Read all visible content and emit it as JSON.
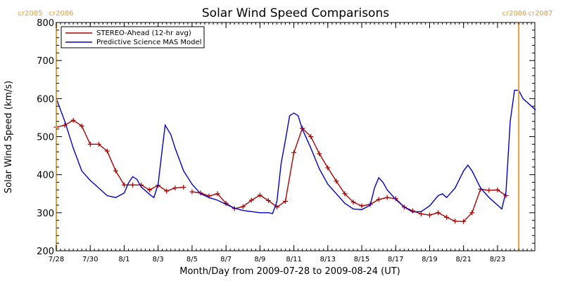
{
  "chart_data": {
    "type": "line",
    "title": "Solar Wind Speed Comparisons",
    "xlabel": "Month/Day from 2009-07-28 to 2009-08-24 (UT)",
    "ylabel": "Solar Wind Speed (km/s)",
    "xlim": [
      "2009-07-28",
      "2009-08-24"
    ],
    "ylim": [
      200,
      800
    ],
    "yticks": [
      200,
      300,
      400,
      500,
      600,
      700,
      800
    ],
    "xtick_dates": [
      "2009-07-28",
      "2009-07-30",
      "2009-08-01",
      "2009-08-03",
      "2009-08-05",
      "2009-08-07",
      "2009-08-09",
      "2009-08-11",
      "2009-08-13",
      "2009-08-15",
      "2009-08-17",
      "2009-08-19",
      "2009-08-21",
      "2009-08-23"
    ],
    "xtick_labels": [
      "7/28",
      "7/30",
      "8/1",
      "8/3",
      "8/5",
      "8/7",
      "8/9",
      "8/11",
      "8/13",
      "8/15",
      "8/17",
      "8/19",
      "8/21",
      "8/23"
    ],
    "legend_position": "top-left",
    "carrington_markers": [
      {
        "date": "2009-07-28",
        "left_label": "cr2085",
        "right_label": "cr2086",
        "color": "#e8a03c"
      },
      {
        "date": "2009-08-24 06:00",
        "left_label": "cr2086",
        "right_label": "cr2087",
        "color": "#e8a03c"
      }
    ],
    "series": [
      {
        "name": "STEREO-Ahead (12-hr avg)",
        "color": "#aa0000",
        "marker": "+",
        "segments": [
          [
            [
              "2009-07-28 00:00",
              525
            ],
            [
              "2009-07-28 12:00",
              530
            ],
            [
              "2009-07-29 00:00",
              543
            ],
            [
              "2009-07-29 12:00",
              528
            ],
            [
              "2009-07-30 00:00",
              480
            ],
            [
              "2009-07-30 12:00",
              480
            ],
            [
              "2009-07-31 00:00",
              462
            ],
            [
              "2009-07-31 12:00",
              410
            ],
            [
              "2009-08-01 00:00",
              373
            ],
            [
              "2009-08-01 12:00",
              373
            ],
            [
              "2009-08-02 00:00",
              373
            ],
            [
              "2009-08-02 12:00",
              360
            ],
            [
              "2009-08-03 00:00",
              372
            ],
            [
              "2009-08-03 12:00",
              357
            ],
            [
              "2009-08-04 00:00",
              365
            ],
            [
              "2009-08-04 12:00",
              367
            ]
          ],
          [
            [
              "2009-08-05 00:00",
              355
            ],
            [
              "2009-08-05 12:00",
              352
            ],
            [
              "2009-08-06 00:00",
              344
            ],
            [
              "2009-08-06 12:00",
              350
            ],
            [
              "2009-08-07 00:00",
              325
            ],
            [
              "2009-08-07 12:00",
              311
            ],
            [
              "2009-08-08 00:00",
              316
            ],
            [
              "2009-08-08 12:00",
              333
            ],
            [
              "2009-08-09 00:00",
              346
            ],
            [
              "2009-08-09 12:00",
              332
            ],
            [
              "2009-08-10 00:00",
              315
            ],
            [
              "2009-08-10 12:00",
              330
            ],
            [
              "2009-08-11 00:00",
              458
            ],
            [
              "2009-08-11 12:00",
              522
            ],
            [
              "2009-08-12 00:00",
              500
            ],
            [
              "2009-08-12 12:00",
              455
            ],
            [
              "2009-08-13 00:00",
              418
            ],
            [
              "2009-08-13 12:00",
              383
            ],
            [
              "2009-08-14 00:00",
              350
            ],
            [
              "2009-08-14 12:00",
              328
            ],
            [
              "2009-08-15 00:00",
              318
            ],
            [
              "2009-08-15 12:00",
              322
            ],
            [
              "2009-08-16 00:00",
              335
            ],
            [
              "2009-08-16 12:00",
              340
            ],
            [
              "2009-08-17 00:00",
              337
            ],
            [
              "2009-08-17 12:00",
              315
            ],
            [
              "2009-08-18 00:00",
              305
            ],
            [
              "2009-08-18 12:00",
              297
            ],
            [
              "2009-08-19 00:00",
              294
            ],
            [
              "2009-08-19 12:00",
              300
            ],
            [
              "2009-08-20 00:00",
              288
            ],
            [
              "2009-08-20 12:00",
              278
            ],
            [
              "2009-08-21 00:00",
              277
            ],
            [
              "2009-08-21 12:00",
              300
            ],
            [
              "2009-08-22 00:00",
              362
            ],
            [
              "2009-08-22 12:00",
              359
            ],
            [
              "2009-08-23 00:00",
              360
            ],
            [
              "2009-08-23 12:00",
              345
            ]
          ]
        ]
      },
      {
        "name": "Predictive Science MAS Model",
        "color": "#0000cc",
        "marker": "",
        "segments": [
          [
            [
              "2009-07-28 00:00",
              600
            ],
            [
              "2009-07-28 12:00",
              540
            ],
            [
              "2009-07-29 00:00",
              470
            ],
            [
              "2009-07-29 12:00",
              410
            ],
            [
              "2009-07-30 00:00",
              385
            ],
            [
              "2009-07-30 12:00",
              365
            ],
            [
              "2009-07-31 00:00",
              345
            ],
            [
              "2009-07-31 12:00",
              340
            ],
            [
              "2009-08-01 00:00",
              352
            ],
            [
              "2009-08-01 06:00",
              378
            ],
            [
              "2009-08-01 12:00",
              395
            ],
            [
              "2009-08-01 18:00",
              388
            ],
            [
              "2009-08-02 00:00",
              368
            ],
            [
              "2009-08-02 12:00",
              348
            ],
            [
              "2009-08-02 18:00",
              340
            ],
            [
              "2009-08-03 00:00",
              375
            ],
            [
              "2009-08-03 06:00",
              470
            ],
            [
              "2009-08-03 10:00",
              530
            ],
            [
              "2009-08-03 18:00",
              505
            ],
            [
              "2009-08-04 00:00",
              470
            ],
            [
              "2009-08-04 12:00",
              410
            ],
            [
              "2009-08-05 00:00",
              375
            ],
            [
              "2009-08-05 12:00",
              350
            ],
            [
              "2009-08-06 00:00",
              340
            ],
            [
              "2009-08-06 12:00",
              333
            ],
            [
              "2009-08-07 00:00",
              322
            ],
            [
              "2009-08-07 12:00",
              312
            ],
            [
              "2009-08-08 00:00",
              306
            ],
            [
              "2009-08-08 12:00",
              303
            ],
            [
              "2009-08-09 00:00",
              300
            ],
            [
              "2009-08-09 12:00",
              300
            ],
            [
              "2009-08-09 18:00",
              298
            ],
            [
              "2009-08-10 00:00",
              330
            ],
            [
              "2009-08-10 06:00",
              430
            ],
            [
              "2009-08-10 12:00",
              490
            ],
            [
              "2009-08-10 18:00",
              555
            ],
            [
              "2009-08-11 00:00",
              562
            ],
            [
              "2009-08-11 06:00",
              555
            ],
            [
              "2009-08-11 12:00",
              520
            ],
            [
              "2009-08-12 00:00",
              470
            ],
            [
              "2009-08-12 12:00",
              415
            ],
            [
              "2009-08-13 00:00",
              375
            ],
            [
              "2009-08-13 12:00",
              350
            ],
            [
              "2009-08-14 00:00",
              325
            ],
            [
              "2009-08-14 12:00",
              310
            ],
            [
              "2009-08-15 00:00",
              308
            ],
            [
              "2009-08-15 12:00",
              320
            ],
            [
              "2009-08-15 18:00",
              365
            ],
            [
              "2009-08-16 00:00",
              392
            ],
            [
              "2009-08-16 06:00",
              380
            ],
            [
              "2009-08-16 12:00",
              360
            ],
            [
              "2009-08-17 00:00",
              335
            ],
            [
              "2009-08-17 12:00",
              315
            ],
            [
              "2009-08-18 00:00",
              302
            ],
            [
              "2009-08-18 12:00",
              303
            ],
            [
              "2009-08-19 00:00",
              318
            ],
            [
              "2009-08-19 12:00",
              345
            ],
            [
              "2009-08-19 18:00",
              350
            ],
            [
              "2009-08-20 00:00",
              340
            ],
            [
              "2009-08-20 12:00",
              365
            ],
            [
              "2009-08-21 00:00",
              410
            ],
            [
              "2009-08-21 06:00",
              425
            ],
            [
              "2009-08-21 12:00",
              410
            ],
            [
              "2009-08-22 00:00",
              365
            ],
            [
              "2009-08-22 12:00",
              340
            ],
            [
              "2009-08-23 00:00",
              320
            ],
            [
              "2009-08-23 06:00",
              310
            ],
            [
              "2009-08-23 12:00",
              355
            ],
            [
              "2009-08-23 18:00",
              540
            ],
            [
              "2009-08-24 00:00",
              622
            ],
            [
              "2009-08-24 06:00",
              622
            ],
            [
              "2009-08-24 12:00",
              600
            ],
            [
              "2009-08-25 00:00",
              580
            ],
            [
              "2009-08-25 06:00",
              570
            ]
          ]
        ]
      }
    ]
  }
}
